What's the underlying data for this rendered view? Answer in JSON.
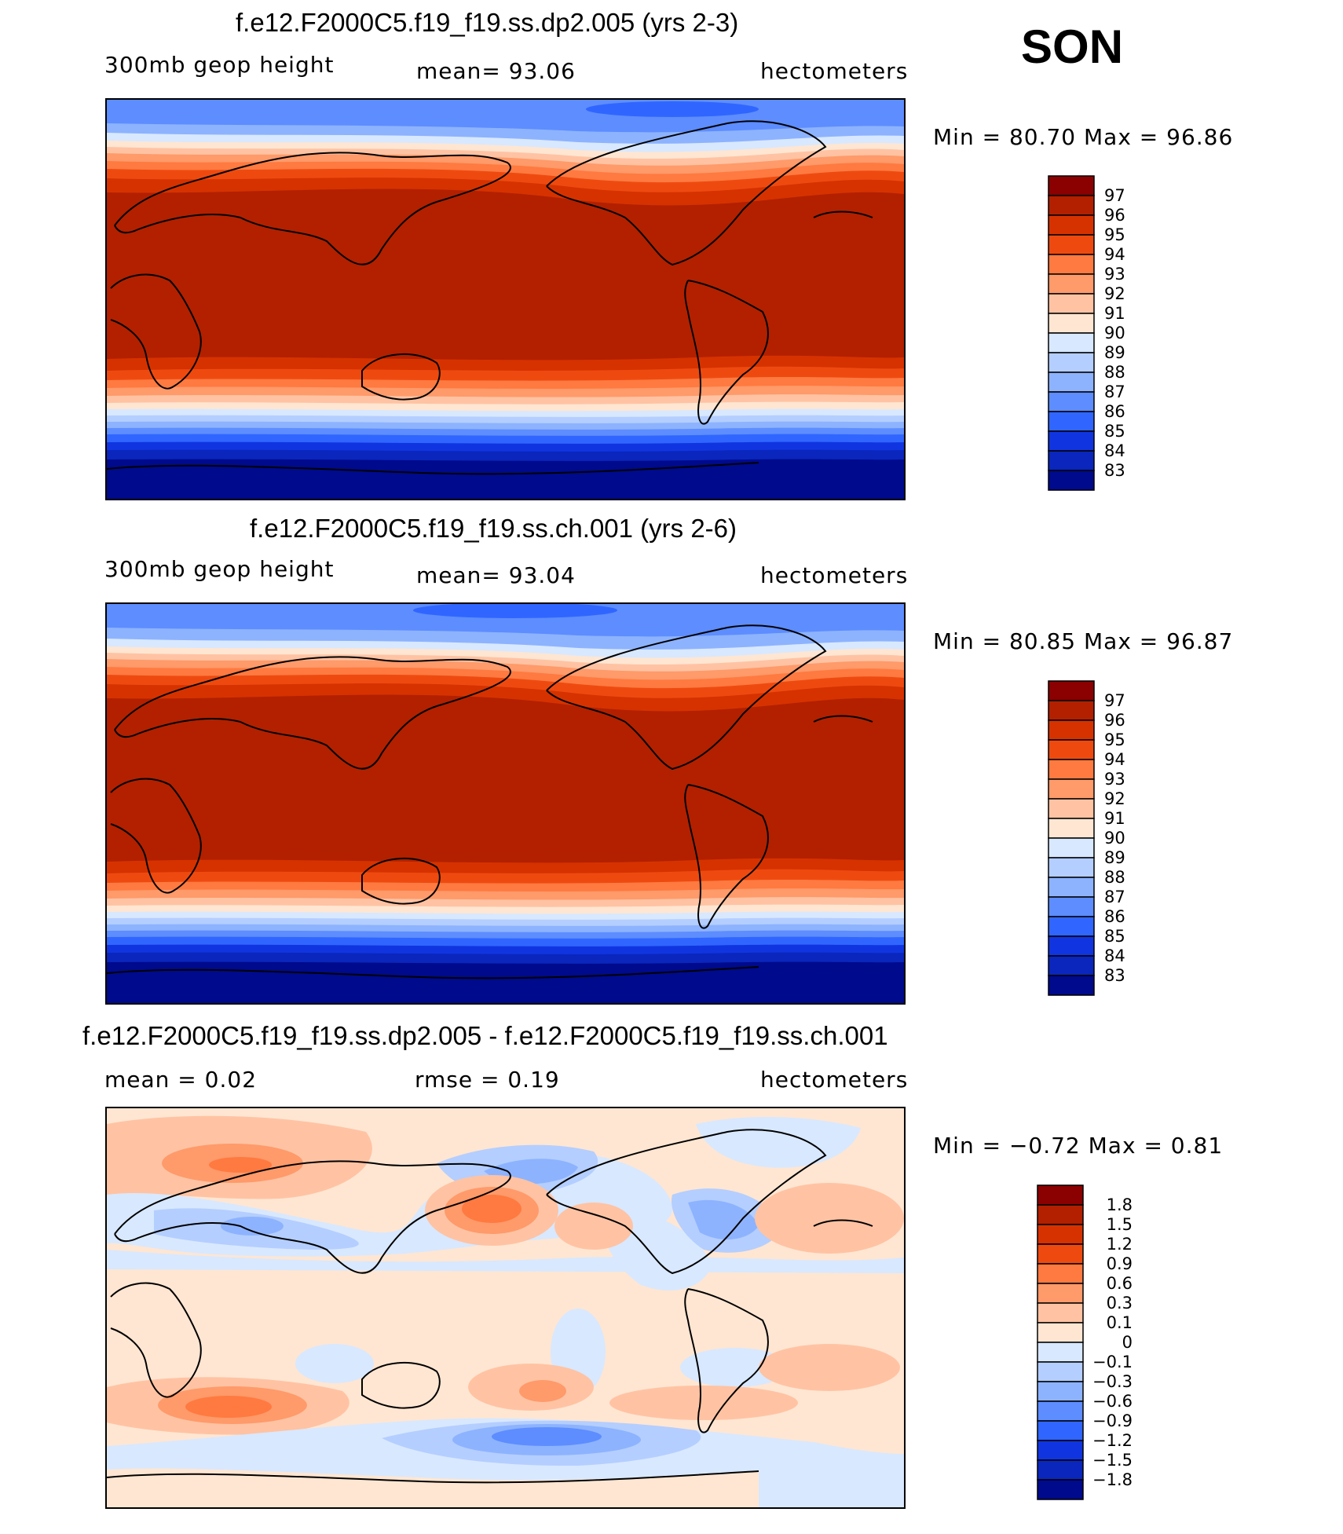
{
  "season": "SON",
  "units_label": "hectometers",
  "panels": [
    {
      "title": "f.e12.F2000C5.f19_f19.ss.dp2.005 (yrs 2-3)",
      "left_label": "300mb  geop  height",
      "center_label": "mean=   93.06",
      "right_label": "hectometers",
      "minmax": "Min  =    80.70  Max  =    96.86"
    },
    {
      "title": "f.e12.F2000C5.f19_f19.ss.ch.001 (yrs 2-6)",
      "left_label": "300mb  geop  height",
      "center_label": "mean=   93.04",
      "right_label": "hectometers",
      "minmax": "Min  =    80.85  Max  =    96.87"
    },
    {
      "title": "f.e12.F2000C5.f19_f19.ss.dp2.005 - f.e12.F2000C5.f19_f19.ss.ch.001",
      "left_label": "mean  =      0.02",
      "center_label": "rmse  =      0.19",
      "right_label": "hectometers",
      "minmax": "Min  =   −0.72  Max  =      0.81"
    }
  ],
  "chart_data": [
    {
      "type": "heatmap",
      "title": "f.e12.F2000C5.f19_f19.ss.dp2.005 (yrs 2-3)",
      "variable": "300mb geop height",
      "units": "hectometers",
      "mean": 93.06,
      "min": 80.7,
      "max": 96.86,
      "colorbar_levels": [
        "97",
        "96",
        "95",
        "94",
        "93",
        "92",
        "91",
        "90",
        "89",
        "88",
        "87",
        "86",
        "85",
        "84",
        "83"
      ],
      "colors": [
        "#8b0000",
        "#b22000",
        "#d63200",
        "#ee4a10",
        "#ff7a40",
        "#ff9a6a",
        "#ffc3a3",
        "#ffe6d2",
        "#d8e8ff",
        "#b4ceff",
        "#8db3ff",
        "#5d8dff",
        "#3066ff",
        "#1035e0",
        "#0a26bc",
        "#000a8c"
      ]
    },
    {
      "type": "heatmap",
      "title": "f.e12.F2000C5.f19_f19.ss.ch.001 (yrs 2-6)",
      "variable": "300mb geop height",
      "units": "hectometers",
      "mean": 93.04,
      "min": 80.85,
      "max": 96.87,
      "colorbar_levels": [
        "97",
        "96",
        "95",
        "94",
        "93",
        "92",
        "91",
        "90",
        "89",
        "88",
        "87",
        "86",
        "85",
        "84",
        "83"
      ],
      "colors": [
        "#8b0000",
        "#b22000",
        "#d63200",
        "#ee4a10",
        "#ff7a40",
        "#ff9a6a",
        "#ffc3a3",
        "#ffe6d2",
        "#d8e8ff",
        "#b4ceff",
        "#8db3ff",
        "#5d8dff",
        "#3066ff",
        "#1035e0",
        "#0a26bc",
        "#000a8c"
      ]
    },
    {
      "type": "heatmap",
      "title": "f.e12.F2000C5.f19_f19.ss.dp2.005 - f.e12.F2000C5.f19_f19.ss.ch.001",
      "units": "hectometers",
      "mean": 0.02,
      "rmse": 0.19,
      "min": -0.72,
      "max": 0.81,
      "colorbar_levels": [
        "1.8",
        "1.5",
        "1.2",
        "0.9",
        "0.6",
        "0.3",
        "0.1",
        "0",
        "−0.1",
        "−0.3",
        "−0.6",
        "−0.9",
        "−1.2",
        "−1.5",
        "−1.8"
      ],
      "colors": [
        "#8b0000",
        "#b22000",
        "#d63200",
        "#ee4a10",
        "#ff7a40",
        "#ff9a6a",
        "#ffc3a3",
        "#ffe6d2",
        "#d8e8ff",
        "#b4ceff",
        "#8db3ff",
        "#5d8dff",
        "#3066ff",
        "#1035e0",
        "#0a26bc",
        "#000a8c"
      ]
    }
  ]
}
